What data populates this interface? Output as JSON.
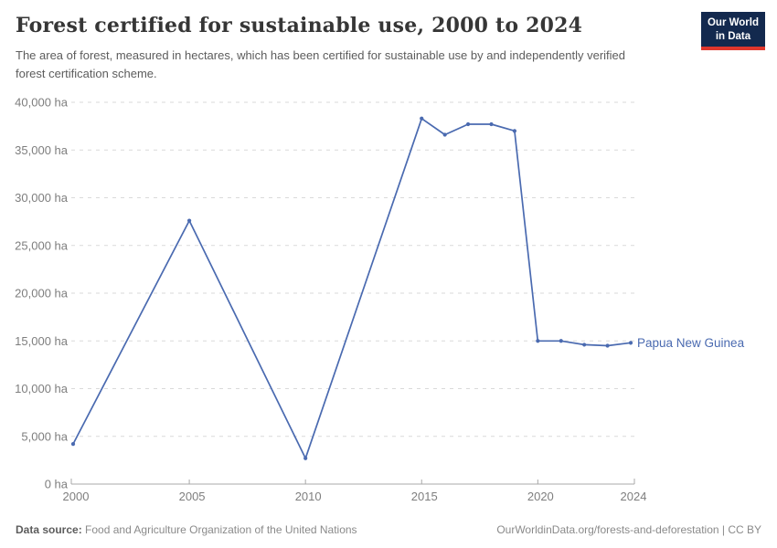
{
  "header": {
    "title": "Forest certified for sustainable use, 2000 to 2024",
    "subtitle": "The area of forest, measured in hectares, which has been certified for sustainable use by and independently verified forest certification scheme.",
    "logo": {
      "line1": "Our World",
      "line2": "in Data",
      "bg_color": "#13294e",
      "accent_color": "#e0362c"
    }
  },
  "chart_data": {
    "type": "line",
    "title": "Forest certified for sustainable use, 2000 to 2024",
    "xlabel": "",
    "ylabel": "",
    "xlim": [
      2000,
      2024
    ],
    "ylim": [
      0,
      40000
    ],
    "yticks": [
      0,
      5000,
      10000,
      15000,
      20000,
      25000,
      30000,
      35000,
      40000
    ],
    "ytick_suffix": " ha",
    "xticks": [
      2000,
      2005,
      2010,
      2015,
      2020,
      2024
    ],
    "grid": "horizontal-dashed",
    "legend_position": "end-of-line-label",
    "series": [
      {
        "name": "Papua New Guinea",
        "color": "#4a6ab0",
        "x": [
          2000,
          2005,
          2010,
          2015,
          2016,
          2017,
          2018,
          2019,
          2020,
          2021,
          2022,
          2023,
          2024
        ],
        "values": [
          4200,
          27600,
          2700,
          38300,
          36600,
          37700,
          37700,
          37000,
          15000,
          15000,
          14600,
          14500,
          14800
        ]
      }
    ],
    "colors": {
      "gridline": "#dadada",
      "axis": "#a8a8a8",
      "tick_label": "#7e7e7e"
    }
  },
  "footer": {
    "source_label": "Data source:",
    "source_text": "Food and Agriculture Organization of the United Nations",
    "link_text": "OurWorldinData.org/forests-and-deforestation | CC BY"
  }
}
